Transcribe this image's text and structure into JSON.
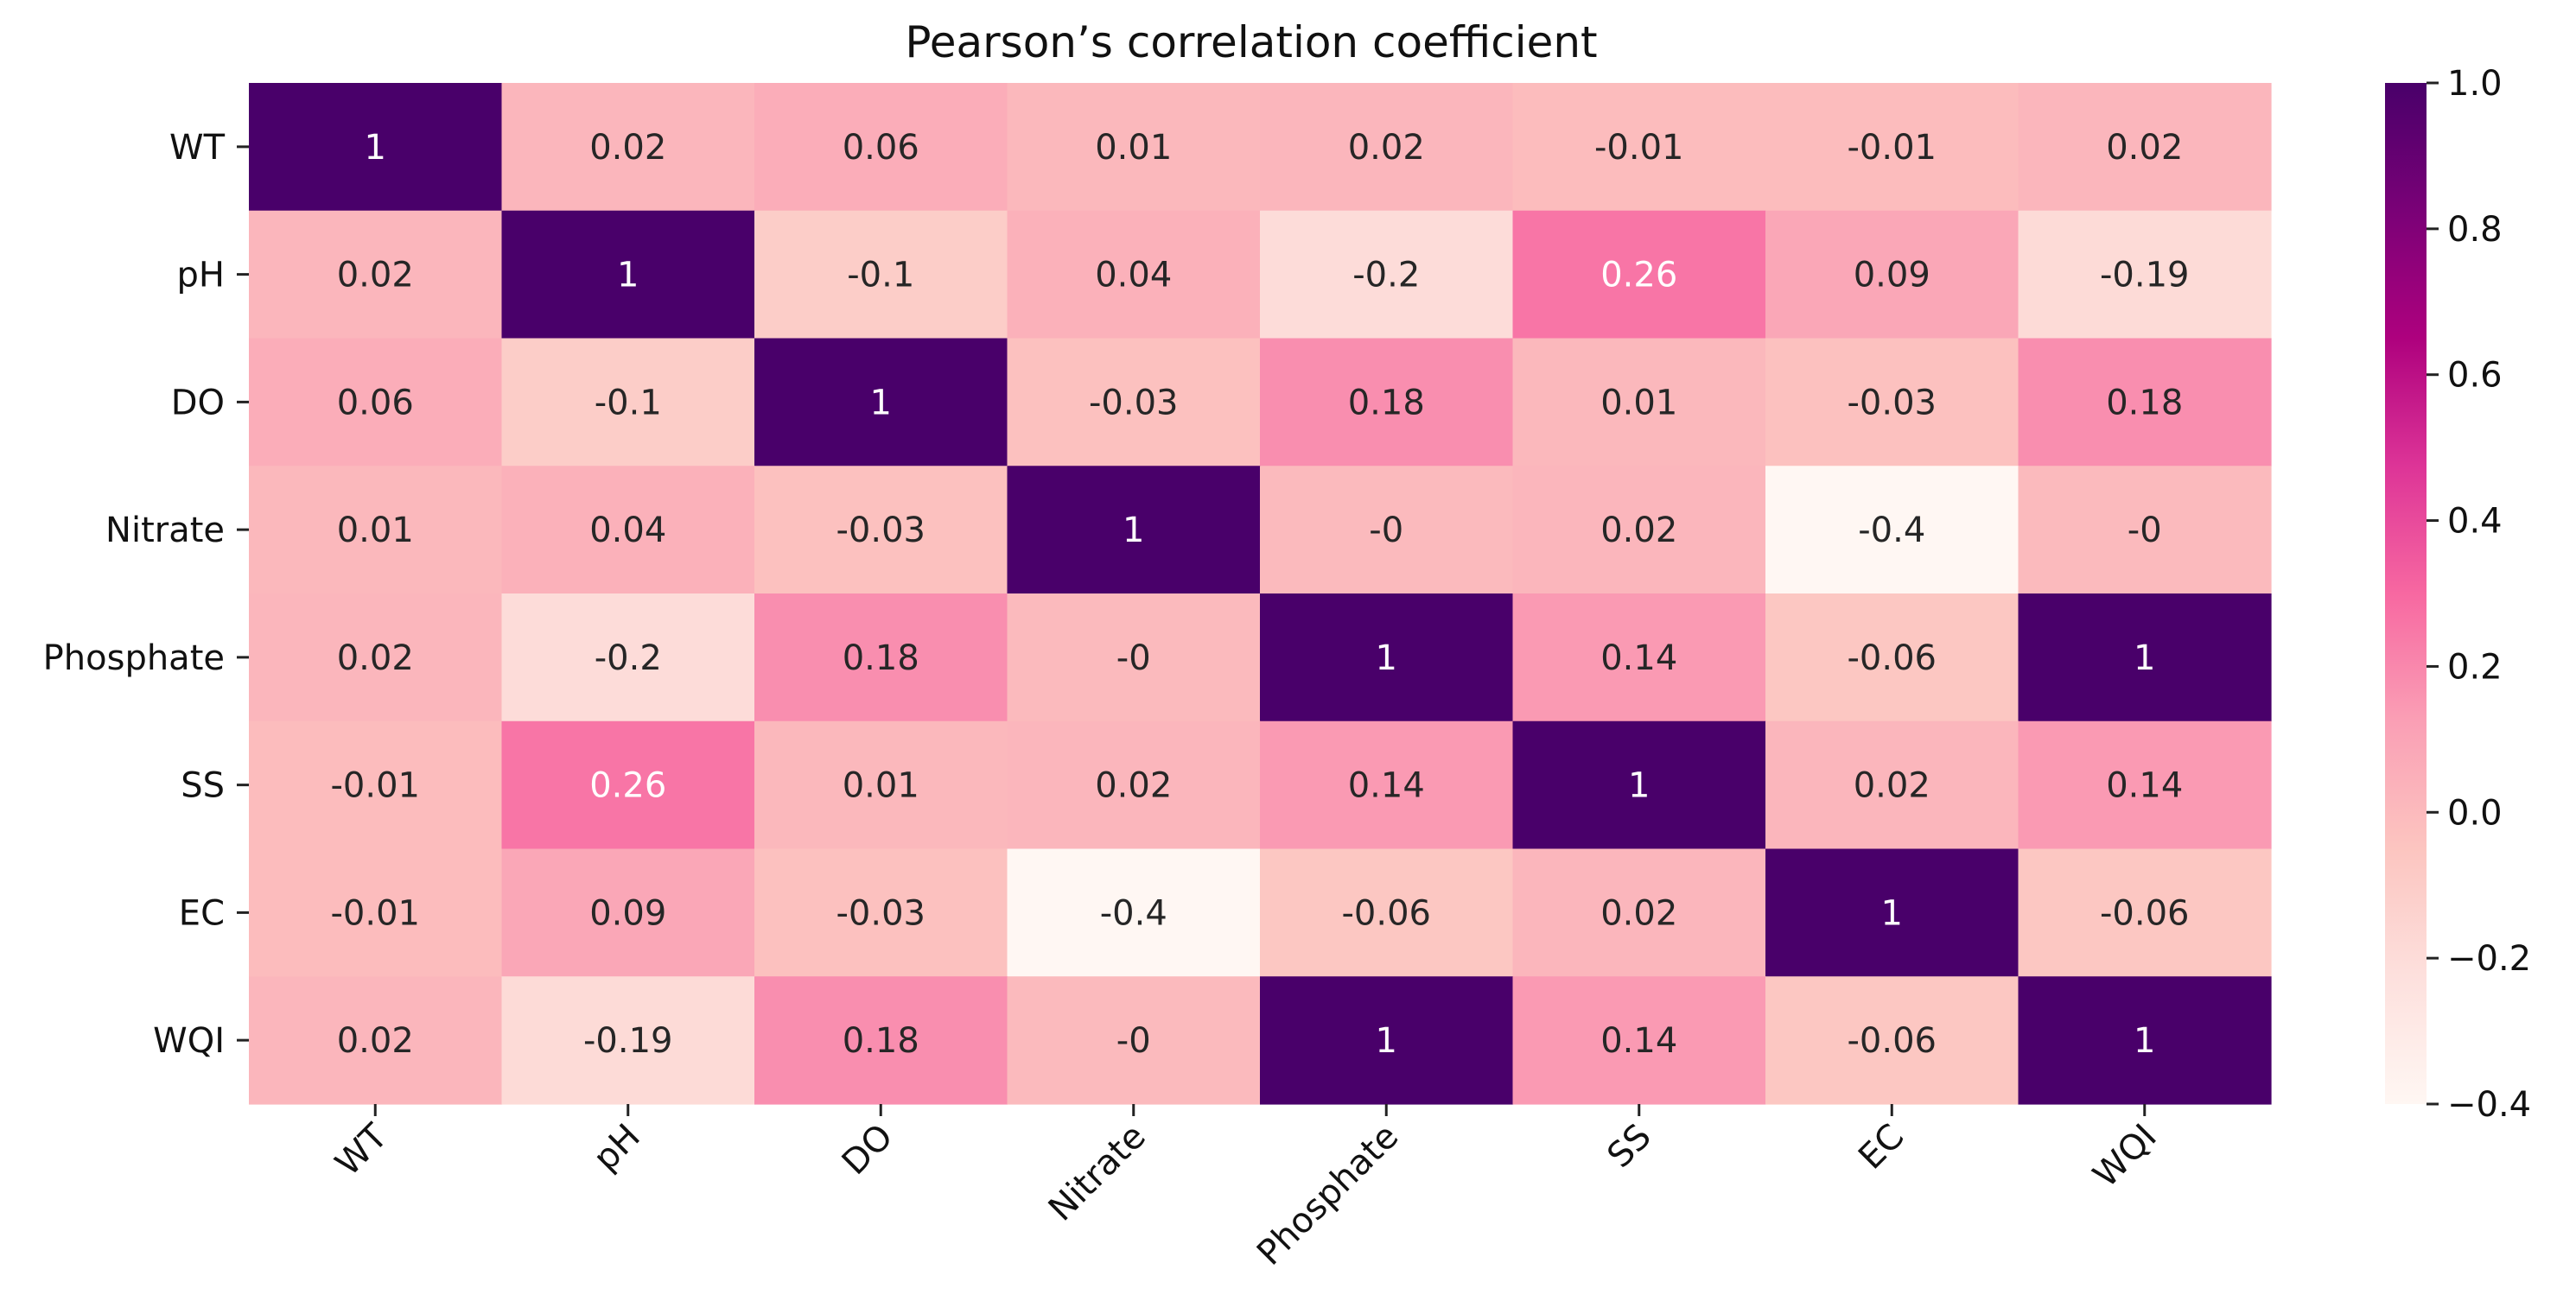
{
  "chart_data": {
    "type": "heatmap",
    "title": "Pearson’s correlation coefficient",
    "xlabel": "",
    "ylabel": "",
    "x_labels": [
      "WT",
      "pH",
      "DO",
      "Nitrate",
      "Phosphate",
      "SS",
      "EC",
      "WQI"
    ],
    "y_labels": [
      "WT",
      "pH",
      "DO",
      "Nitrate",
      "Phosphate",
      "SS",
      "EC",
      "WQI"
    ],
    "matrix": [
      [
        1,
        0.02,
        0.06,
        0.01,
        0.02,
        -0.01,
        -0.01,
        0.02
      ],
      [
        0.02,
        1,
        -0.1,
        0.04,
        -0.2,
        0.26,
        0.09,
        -0.19
      ],
      [
        0.06,
        -0.1,
        1,
        -0.03,
        0.18,
        0.01,
        -0.03,
        0.18
      ],
      [
        0.01,
        0.04,
        -0.03,
        1,
        0,
        0.02,
        -0.4,
        0
      ],
      [
        0.02,
        -0.2,
        0.18,
        0,
        1,
        0.14,
        -0.06,
        1
      ],
      [
        -0.01,
        0.26,
        0.01,
        0.02,
        0.14,
        1,
        0.02,
        0.14
      ],
      [
        -0.01,
        0.09,
        -0.03,
        -0.4,
        -0.06,
        0.02,
        1,
        -0.06
      ],
      [
        0.02,
        -0.19,
        0.18,
        0,
        1,
        0.14,
        -0.06,
        1
      ]
    ],
    "cell_labels": [
      [
        "1",
        "0.02",
        "0.06",
        "0.01",
        "0.02",
        "-0.01",
        "-0.01",
        "0.02"
      ],
      [
        "0.02",
        "1",
        "-0.1",
        "0.04",
        "-0.2",
        "0.26",
        "0.09",
        "-0.19"
      ],
      [
        "0.06",
        "-0.1",
        "1",
        "-0.03",
        "0.18",
        "0.01",
        "-0.03",
        "0.18"
      ],
      [
        "0.01",
        "0.04",
        "-0.03",
        "1",
        "-0",
        "0.02",
        "-0.4",
        "-0"
      ],
      [
        "0.02",
        "-0.2",
        "0.18",
        "-0",
        "1",
        "0.14",
        "-0.06",
        "1"
      ],
      [
        "-0.01",
        "0.26",
        "0.01",
        "0.02",
        "0.14",
        "1",
        "0.02",
        "0.14"
      ],
      [
        "-0.01",
        "0.09",
        "-0.03",
        "-0.4",
        "-0.06",
        "0.02",
        "1",
        "-0.06"
      ],
      [
        "0.02",
        "-0.19",
        "0.18",
        "-0",
        "1",
        "0.14",
        "-0.06",
        "1"
      ]
    ],
    "colorbar": {
      "vmin": -0.4,
      "vmax": 1.0,
      "ticks": [
        1.0,
        0.8,
        0.6,
        0.4,
        0.2,
        0.0,
        -0.2,
        -0.4
      ],
      "tick_labels": [
        "1.0",
        "0.8",
        "0.6",
        "0.4",
        "0.2",
        "0.0",
        "−0.2",
        "−0.4"
      ],
      "colormap": "RdPu",
      "stops": [
        "#fff7f3",
        "#fde0dd",
        "#fcc5c0",
        "#fa9fb5",
        "#f768a1",
        "#dd3497",
        "#ae017e",
        "#7a0177",
        "#49006a"
      ]
    },
    "annotation_colors": {
      "dark": "#262626",
      "light": "#ffffff"
    }
  }
}
